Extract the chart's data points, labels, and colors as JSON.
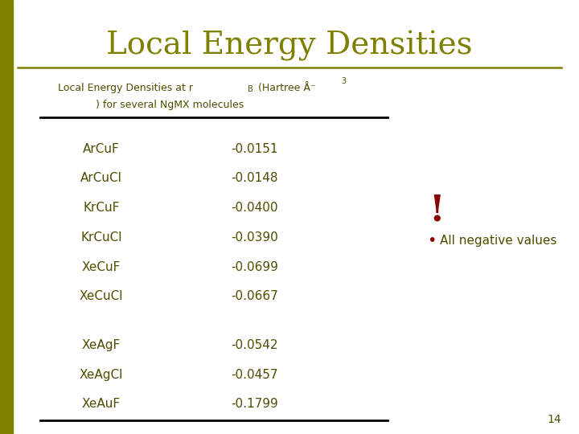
{
  "title": "Local Energy Densities",
  "title_color": "#808000",
  "molecules": [
    "ArCuF",
    "ArCuCl",
    "KrCuF",
    "KrCuCl",
    "XeCuF",
    "XeCuCl",
    "XeAgF",
    "XeAgCl",
    "XeAuF"
  ],
  "values": [
    "-0.0151",
    "-0.0148",
    "-0.0400",
    "-0.0390",
    "-0.0699",
    "-0.0667",
    "-0.0542",
    "-0.0457",
    "-0.1799"
  ],
  "text_color": "#4d4d00",
  "annotation_text": "All negative values",
  "annotation_color": "#8B0000",
  "slide_number": "14",
  "left_bar_color": "#808000",
  "horizontal_rule_color": "#808000",
  "background_color": "#ffffff"
}
